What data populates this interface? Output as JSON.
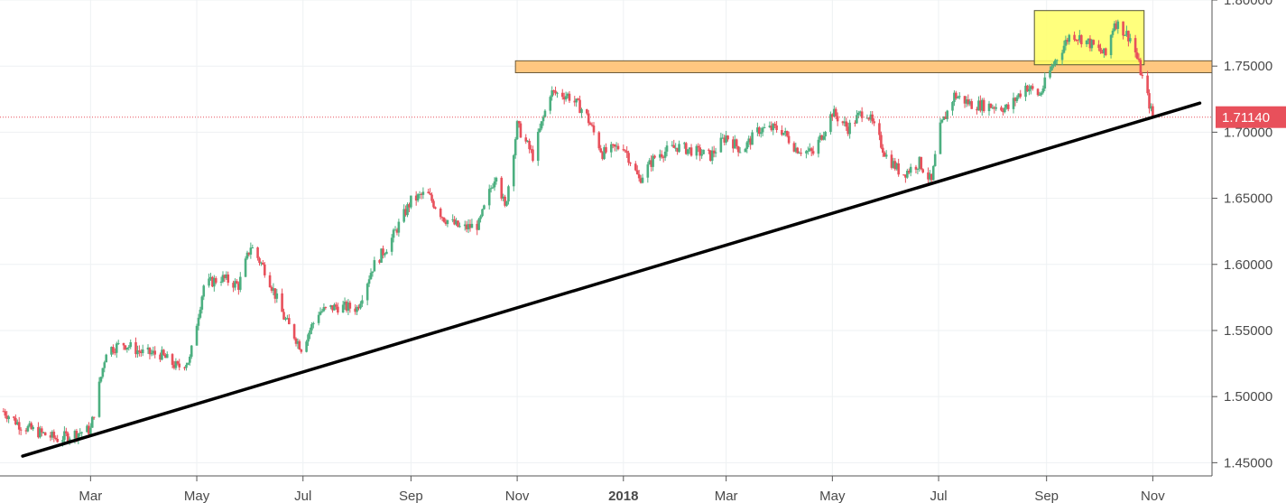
{
  "chart_data": {
    "type": "candlestick",
    "title": "",
    "xlabel": "",
    "ylabel": "",
    "ylim": [
      1.44,
      1.8
    ],
    "grid": true,
    "x_ticks": [
      {
        "label": "Mar",
        "date": "2017-03-01",
        "bold": false
      },
      {
        "label": "May",
        "date": "2017-05-01",
        "bold": false
      },
      {
        "label": "Jul",
        "date": "2017-07-01",
        "bold": false
      },
      {
        "label": "Sep",
        "date": "2017-09-01",
        "bold": false
      },
      {
        "label": "Nov",
        "date": "2017-11-01",
        "bold": false
      },
      {
        "label": "2018",
        "date": "2018-01-01",
        "bold": true
      },
      {
        "label": "Mar",
        "date": "2018-03-01",
        "bold": false
      },
      {
        "label": "May",
        "date": "2018-05-01",
        "bold": false
      },
      {
        "label": "Jul",
        "date": "2018-07-01",
        "bold": false
      },
      {
        "label": "Sep",
        "date": "2018-09-01",
        "bold": false
      },
      {
        "label": "Nov",
        "date": "2018-11-01",
        "bold": false
      }
    ],
    "y_ticks": [
      "1.45000",
      "1.50000",
      "1.55000",
      "1.60000",
      "1.65000",
      "1.70000",
      "1.75000",
      "1.80000"
    ],
    "x_range": [
      "2017-01-08",
      "2018-12-05"
    ],
    "close_path": [
      [
        "2017-01-10",
        1.489
      ],
      [
        "2017-01-20",
        1.478
      ],
      [
        "2017-02-01",
        1.472
      ],
      [
        "2017-02-10",
        1.468
      ],
      [
        "2017-02-20",
        1.472
      ],
      [
        "2017-03-01",
        1.475
      ],
      [
        "2017-03-10",
        1.535
      ],
      [
        "2017-03-20",
        1.54
      ],
      [
        "2017-03-31",
        1.533
      ],
      [
        "2017-04-10",
        1.532
      ],
      [
        "2017-04-20",
        1.522
      ],
      [
        "2017-04-27",
        1.528
      ],
      [
        "2017-05-05",
        1.584
      ],
      [
        "2017-05-15",
        1.59
      ],
      [
        "2017-05-25",
        1.584
      ],
      [
        "2017-06-01",
        1.614
      ],
      [
        "2017-06-10",
        1.594
      ],
      [
        "2017-06-20",
        1.56
      ],
      [
        "2017-06-30",
        1.537
      ],
      [
        "2017-07-10",
        1.564
      ],
      [
        "2017-07-20",
        1.568
      ],
      [
        "2017-08-01",
        1.567
      ],
      [
        "2017-08-10",
        1.598
      ],
      [
        "2017-08-20",
        1.617
      ],
      [
        "2017-09-01",
        1.648
      ],
      [
        "2017-09-10",
        1.654
      ],
      [
        "2017-09-20",
        1.635
      ],
      [
        "2017-09-30",
        1.627
      ],
      [
        "2017-10-10",
        1.63
      ],
      [
        "2017-10-20",
        1.67
      ],
      [
        "2017-10-25",
        1.642
      ],
      [
        "2017-11-01",
        1.705
      ],
      [
        "2017-11-10",
        1.682
      ],
      [
        "2017-11-20",
        1.73
      ],
      [
        "2017-11-30",
        1.728
      ],
      [
        "2017-12-10",
        1.715
      ],
      [
        "2017-12-20",
        1.684
      ],
      [
        "2018-01-01",
        1.69
      ],
      [
        "2018-01-10",
        1.664
      ],
      [
        "2018-01-20",
        1.683
      ],
      [
        "2018-02-01",
        1.689
      ],
      [
        "2018-02-10",
        1.686
      ],
      [
        "2018-02-20",
        1.682
      ],
      [
        "2018-03-01",
        1.697
      ],
      [
        "2018-03-10",
        1.686
      ],
      [
        "2018-03-20",
        1.702
      ],
      [
        "2018-04-01",
        1.703
      ],
      [
        "2018-04-10",
        1.688
      ],
      [
        "2018-04-20",
        1.684
      ],
      [
        "2018-05-01",
        1.715
      ],
      [
        "2018-05-10",
        1.703
      ],
      [
        "2018-05-20",
        1.718
      ],
      [
        "2018-06-01",
        1.682
      ],
      [
        "2018-06-10",
        1.668
      ],
      [
        "2018-06-20",
        1.677
      ],
      [
        "2018-06-27",
        1.662
      ],
      [
        "2018-07-01",
        1.7
      ],
      [
        "2018-07-10",
        1.728
      ],
      [
        "2018-07-20",
        1.721
      ],
      [
        "2018-08-01",
        1.72
      ],
      [
        "2018-08-10",
        1.718
      ],
      [
        "2018-08-20",
        1.735
      ],
      [
        "2018-08-28",
        1.728
      ],
      [
        "2018-09-05",
        1.752
      ],
      [
        "2018-09-15",
        1.775
      ],
      [
        "2018-09-25",
        1.768
      ],
      [
        "2018-10-05",
        1.758
      ],
      [
        "2018-10-10",
        1.784
      ],
      [
        "2018-10-20",
        1.77
      ],
      [
        "2018-10-25",
        1.746
      ],
      [
        "2018-11-01",
        1.7114
      ]
    ],
    "resistance_zone": {
      "from": "2017-10-31",
      "to": "2018-12-05",
      "low": 1.745,
      "high": 1.754,
      "color": "#ffc780"
    },
    "top_box": {
      "from": "2018-08-25",
      "to": "2018-10-27",
      "low": 1.751,
      "high": 1.792,
      "color": "#ffff66"
    },
    "trendline": {
      "from": [
        "2017-01-21",
        1.455
      ],
      "to": [
        "2018-11-28",
        1.722
      ],
      "color": "#000000"
    },
    "current_price": {
      "value": 1.7114,
      "label": "1.71140",
      "color": "#e8505b"
    }
  },
  "colors": {
    "up": "#4caf80",
    "down": "#e8505b",
    "grid": "#eef1f3",
    "axis": "#555555",
    "background": "#ffffff"
  }
}
